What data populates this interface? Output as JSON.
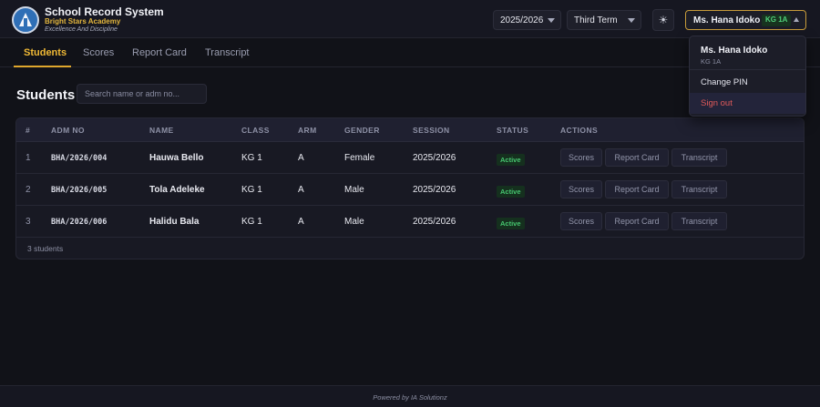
{
  "app": {
    "title": "School Record System",
    "school": "Bright Stars Academy",
    "motto": "Excellence And Discipline"
  },
  "header": {
    "session": "2025/2026",
    "term": "Third Term",
    "theme_icon": "sun-icon",
    "user_name": "Ms. Hana Idoko",
    "user_class": "KG 1A"
  },
  "tabs": [
    {
      "label": "Students",
      "active": true
    },
    {
      "label": "Scores",
      "active": false
    },
    {
      "label": "Report Card",
      "active": false
    },
    {
      "label": "Transcript",
      "active": false
    }
  ],
  "page": {
    "title": "Students",
    "search_placeholder": "Search name or adm no..."
  },
  "table": {
    "columns": [
      "#",
      "ADM NO",
      "NAME",
      "CLASS",
      "ARM",
      "GENDER",
      "SESSION",
      "STATUS",
      "ACTIONS"
    ],
    "rows": [
      {
        "num": "1",
        "adm": "BHA/2026/004",
        "name": "Hauwa Bello",
        "class": "KG 1",
        "arm": "A",
        "gender": "Female",
        "session": "2025/2026",
        "status": "Active"
      },
      {
        "num": "2",
        "adm": "BHA/2026/005",
        "name": "Tola Adeleke",
        "class": "KG 1",
        "arm": "A",
        "gender": "Male",
        "session": "2025/2026",
        "status": "Active"
      },
      {
        "num": "3",
        "adm": "BHA/2026/006",
        "name": "Halidu Bala",
        "class": "KG 1",
        "arm": "A",
        "gender": "Male",
        "session": "2025/2026",
        "status": "Active"
      }
    ],
    "actions": [
      "Scores",
      "Report Card",
      "Transcript"
    ],
    "footer": "3 students"
  },
  "user_menu": {
    "name": "Ms. Hana Idoko",
    "class": "KG 1A",
    "change_pin": "Change PIN",
    "sign_out": "Sign out"
  },
  "footer": "Powered by IA Solutionz",
  "colors": {
    "accent": "#f0b935",
    "active_status": "#46c56f",
    "danger": "#e05a5a",
    "background": "#111218"
  }
}
